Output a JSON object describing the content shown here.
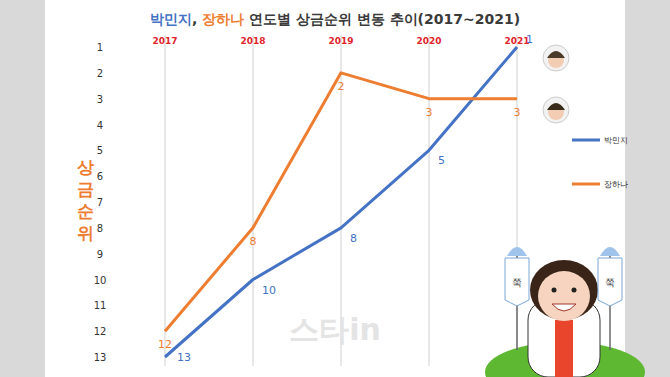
{
  "chart_data": {
    "type": "line",
    "title": "박민지, 장하나 연도별 상금순위 변동 추이(2017~2021)",
    "y_label": "상금순위",
    "categories": [
      "2017",
      "2018",
      "2019",
      "2020",
      "2021"
    ],
    "series": [
      {
        "name": "박민지",
        "color": "#4472c4",
        "values": [
          13,
          10,
          8,
          5,
          1
        ]
      },
      {
        "name": "장하나",
        "color": "#ed7d31",
        "values": [
          12,
          8,
          2,
          3,
          3
        ]
      }
    ],
    "ylim": [
      13,
      1
    ],
    "yticks": [
      1,
      2,
      3,
      4,
      5,
      6,
      7,
      8,
      9,
      10,
      11,
      12,
      13
    ],
    "grid": true,
    "legend": "right",
    "data_labels": true,
    "annotations": [
      "스타in",
      "쭉",
      "쭉"
    ]
  }
}
